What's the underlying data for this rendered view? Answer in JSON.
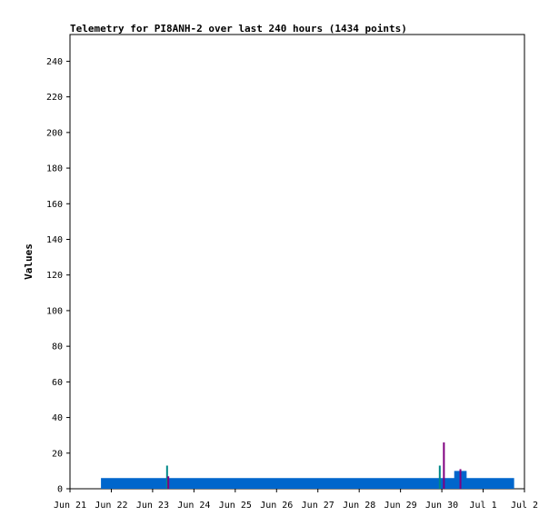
{
  "chart_data": {
    "type": "bar",
    "title": "Telemetry for PI8ANH-2 over last 240 hours (1434 points)",
    "xlabel": "",
    "ylabel": "Values",
    "x_unit": "date (day.fraction, Jun 21 = 21)",
    "xlim": [
      "Jun 21",
      "Jul 2"
    ],
    "ylim": [
      0,
      255
    ],
    "yticks": [
      0,
      20,
      40,
      60,
      80,
      100,
      120,
      140,
      160,
      180,
      200,
      220,
      240
    ],
    "xticks": [
      "Jun 21",
      "Jun 22",
      "Jun 23",
      "Jun 24",
      "Jun 25",
      "Jun 26",
      "Jun 27",
      "Jun 28",
      "Jun 29",
      "Jun 30",
      "Jul 1",
      "Jul 2"
    ],
    "grid": false,
    "legend": "none",
    "series": [
      {
        "color": "#0066cc",
        "segments": [
          {
            "x0": "Jun 21.75",
            "x1": "Jul 1.75",
            "value": 6
          },
          {
            "x0": "Jun 30.3",
            "x1": "Jun 30.6",
            "value": 10
          }
        ],
        "spikes": [
          {
            "x": "Jun 23.55",
            "value": 4
          },
          {
            "x": "Jun 26.5",
            "value": 4
          }
        ]
      },
      {
        "color": "#008888",
        "spikes": [
          {
            "x": "Jun 23.35",
            "value": 13
          },
          {
            "x": "Jun 29.95",
            "value": 13
          }
        ]
      },
      {
        "color": "#800080",
        "spikes": [
          {
            "x": "Jun 23.38",
            "value": 7
          },
          {
            "x": "Jun 30.05",
            "value": 26
          },
          {
            "x": "Jun 30.45",
            "value": 11
          }
        ]
      }
    ]
  }
}
